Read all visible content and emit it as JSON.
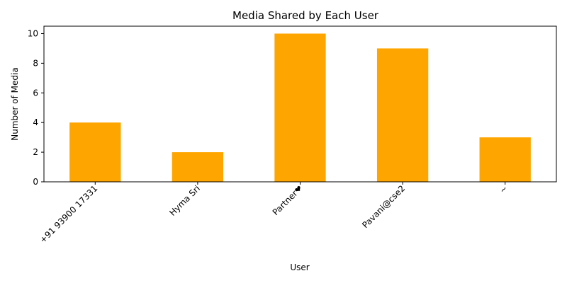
{
  "chart_data": {
    "type": "bar",
    "title": "Media Shared by Each User",
    "xlabel": "User",
    "ylabel": "Number of Media",
    "categories": [
      "+91 93900 17331",
      "Hyma Sri",
      "Partner❤",
      "Pavani@cse2",
      "~"
    ],
    "values": [
      4,
      2,
      10,
      9,
      3
    ],
    "ylim": [
      0,
      10.5
    ],
    "yticks": [
      0,
      2,
      4,
      6,
      8,
      10
    ],
    "grid": false,
    "bar_color": "#ffa500",
    "tick_rotation_deg": 45
  }
}
